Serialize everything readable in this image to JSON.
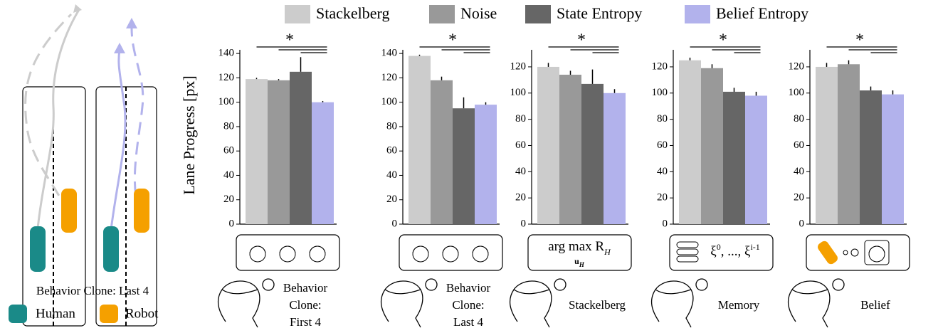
{
  "legend": [
    {
      "name": "Stackelberg",
      "color": "#cccccc"
    },
    {
      "name": "Noise",
      "color": "#999999"
    },
    {
      "name": "State Entropy",
      "color": "#666666"
    },
    {
      "name": "Belief Entropy",
      "color": "#b2b2ec"
    }
  ],
  "chart_data": [
    {
      "type": "bar",
      "ylabel": "Lane Progress [px]",
      "ylim": [
        0,
        143
      ],
      "yticks": [
        0,
        20,
        40,
        60,
        80,
        100,
        120,
        140
      ],
      "values": [
        119,
        118,
        125,
        100
      ],
      "errors": [
        1,
        1,
        12,
        1
      ],
      "annotation": "*",
      "caption": "Behavior Clone: First 4"
    },
    {
      "type": "bar",
      "ylim": [
        0,
        143
      ],
      "yticks": [
        0,
        20,
        40,
        60,
        80,
        100,
        120,
        140
      ],
      "values": [
        138,
        118,
        95,
        98
      ],
      "errors": [
        1,
        3,
        9,
        2
      ],
      "annotation": "*",
      "caption": "Behavior Clone: Last 4"
    },
    {
      "type": "bar",
      "ylim": [
        0,
        133
      ],
      "yticks": [
        0,
        20,
        40,
        60,
        80,
        100,
        120
      ],
      "values": [
        120,
        114,
        107,
        100
      ],
      "errors": [
        3,
        3,
        11,
        3
      ],
      "annotation": "*",
      "caption": "Stackelberg",
      "box": [
        [
          {
            "text": "arg max R"
          },
          {
            "text": "H",
            "style": "sub"
          }
        ],
        [
          {
            "text": "u"
          },
          {
            "text": "H",
            "style": "sub"
          }
        ]
      ]
    },
    {
      "type": "bar",
      "ylim": [
        0,
        133
      ],
      "yticks": [
        0,
        20,
        40,
        60,
        80,
        100,
        120
      ],
      "values": [
        125,
        119,
        101,
        98
      ],
      "errors": [
        2,
        3,
        3,
        3
      ],
      "annotation": "*",
      "caption": "Memory",
      "box": [
        [
          {
            "text": "ξ"
          },
          {
            "text": "0",
            "style": "sup"
          },
          {
            "text": ", ..., ξ"
          },
          {
            "text": "i-1",
            "style": "sup"
          }
        ]
      ]
    },
    {
      "type": "bar",
      "ylim": [
        0,
        133
      ],
      "yticks": [
        0,
        20,
        40,
        60,
        80,
        100,
        120
      ],
      "values": [
        120,
        122,
        102,
        99
      ],
      "errors": [
        3,
        3,
        3,
        3
      ],
      "annotation": "*",
      "caption": "Belief"
    }
  ],
  "left_panel": {
    "caption": "Behavior Clone: Last 4",
    "legend": [
      {
        "name": "Human",
        "color": "#1a8a88"
      },
      {
        "name": "Robot",
        "color": "#f5a000"
      }
    ]
  }
}
